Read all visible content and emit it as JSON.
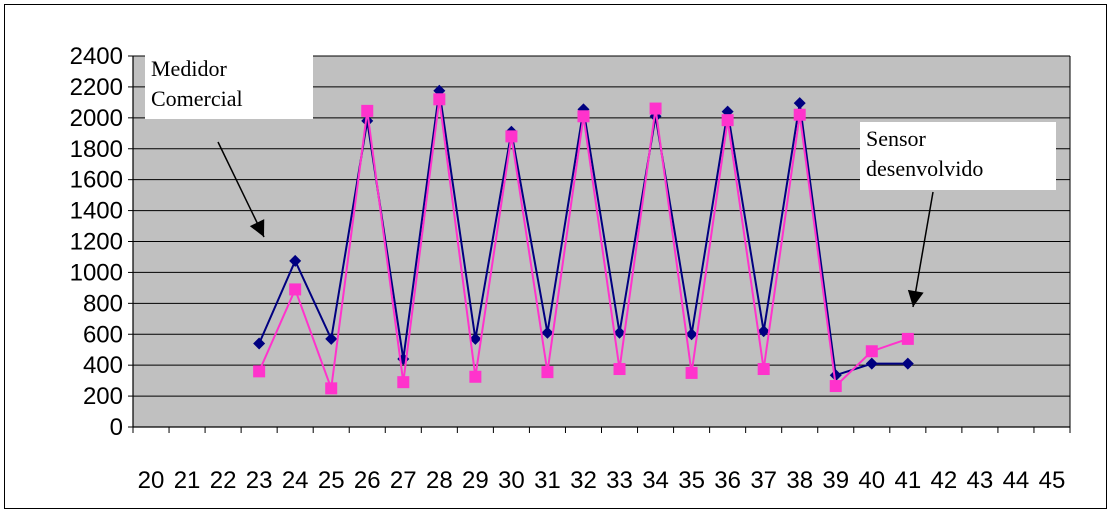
{
  "chart_data": {
    "type": "line",
    "x": [
      20,
      21,
      22,
      23,
      24,
      25,
      26,
      27,
      28,
      29,
      30,
      31,
      32,
      33,
      34,
      35,
      36,
      37,
      38,
      39,
      40,
      41,
      42,
      43,
      44,
      45
    ],
    "y_ticks": [
      "0",
      "200",
      "400",
      "600",
      "800",
      "1000",
      "1200",
      "1400",
      "1600",
      "1800",
      "2000",
      "2200",
      "2400"
    ],
    "x_ticks": [
      "20",
      "21",
      "22",
      "23",
      "24",
      "25",
      "26",
      "27",
      "28",
      "29",
      "30",
      "31",
      "32",
      "33",
      "34",
      "35",
      "36",
      "37",
      "38",
      "39",
      "40",
      "41",
      "42",
      "43",
      "44",
      "45"
    ],
    "ylim": [
      0,
      2400
    ],
    "grid": true,
    "plot_background": "#c0c0c0",
    "series": [
      {
        "name": "Medidor Comercial",
        "color": "#000080",
        "marker": "diamond",
        "x": [
          23,
          24,
          25,
          26,
          27,
          28,
          29,
          30,
          31,
          32,
          33,
          34,
          35,
          36,
          37,
          38,
          39,
          40,
          41
        ],
        "values": [
          540,
          1075,
          570,
          1980,
          440,
          2175,
          570,
          1910,
          610,
          2055,
          610,
          2010,
          600,
          2040,
          620,
          2095,
          335,
          410,
          410
        ]
      },
      {
        "name": "Sensor desenvolvido",
        "color": "#ff33cc",
        "marker": "square",
        "x": [
          23,
          24,
          25,
          26,
          27,
          28,
          29,
          30,
          31,
          32,
          33,
          34,
          35,
          36,
          37,
          38,
          39,
          40,
          41
        ],
        "values": [
          360,
          890,
          250,
          2045,
          290,
          2120,
          325,
          1880,
          355,
          2010,
          375,
          2060,
          350,
          1985,
          375,
          2020,
          265,
          490,
          570
        ]
      }
    ],
    "annotations": {
      "commercial": [
        "Medidor",
        "Comercial"
      ],
      "sensor": [
        "Sensor",
        "desenvolvido"
      ]
    }
  }
}
